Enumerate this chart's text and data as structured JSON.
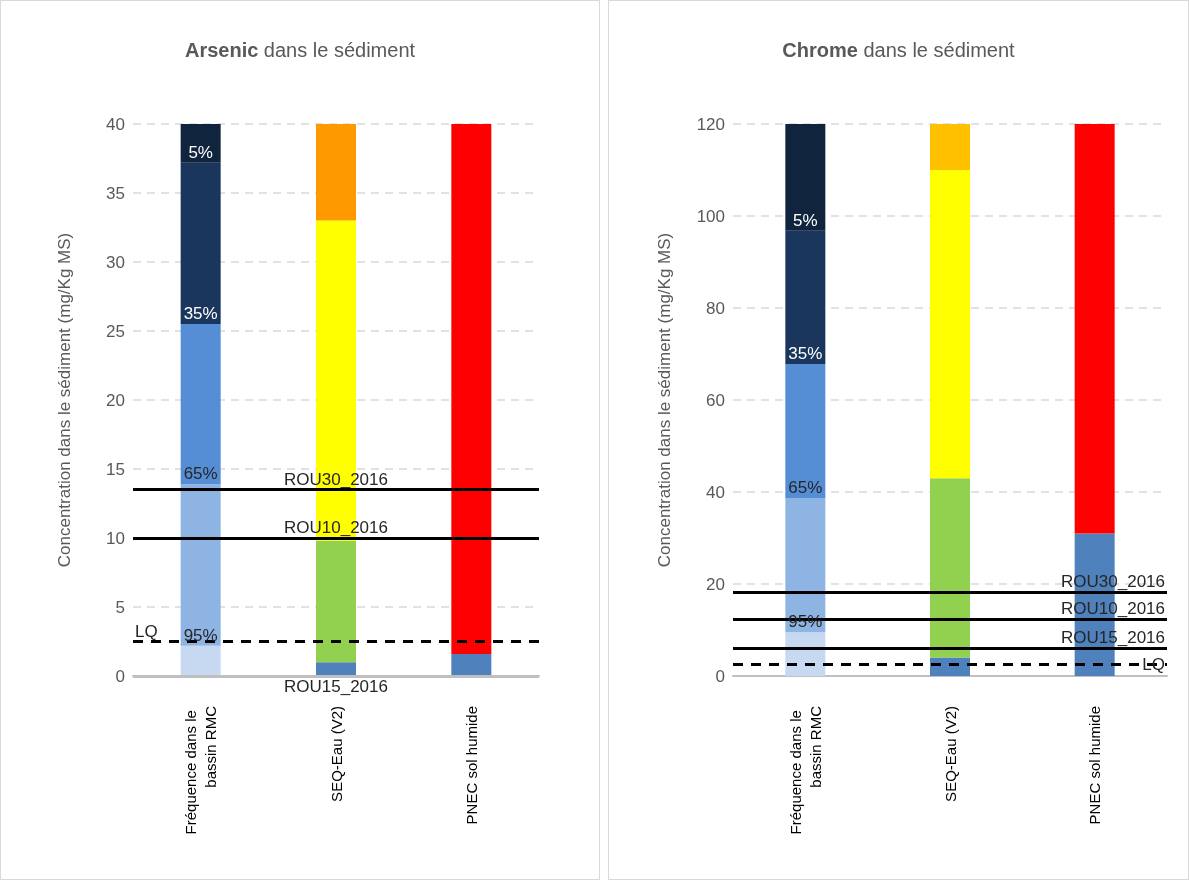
{
  "chart_data": [
    {
      "type": "bar",
      "title": "Arsenic dans le sédiment",
      "ylabel": "Concentration dans le sédiment (mg/Kg MS)",
      "categories": [
        "Fréquence dans le bassin RMC",
        "SEQ-Eau (V2)",
        "PNEC sol humide"
      ],
      "stacked": true,
      "grid": "y",
      "ylim": [
        0,
        40
      ],
      "yticks": [
        0,
        5,
        10,
        15,
        20,
        25,
        30,
        35,
        40
      ],
      "series": [
        {
          "values": [
            2.2,
            1,
            1.6
          ],
          "colors": [
            "#c6d9f1",
            "#4f81bd",
            "#4f81bd"
          ]
        },
        {
          "values": [
            11.7,
            8.8,
            38.4
          ],
          "colors": [
            "#8eb4e3",
            "#92d050",
            "#ff0000"
          ]
        },
        {
          "values": [
            11.6,
            23.2,
            null
          ],
          "colors": [
            "#558ed5",
            "#ffff00",
            null
          ]
        },
        {
          "values": [
            11.7,
            7,
            null
          ],
          "colors": [
            "#1a365d",
            "#ff9900",
            null
          ]
        },
        {
          "values": [
            2.8,
            null,
            null
          ],
          "colors": [
            "#10243e",
            null,
            null
          ]
        }
      ],
      "ref_lines": [
        {
          "axis": "y",
          "value": 13.5,
          "label": "ROU30_2016",
          "color": "#000000",
          "line_style": "solid"
        },
        {
          "axis": "y",
          "value": 10,
          "label": "ROU10_2016",
          "color": "#000000",
          "line_style": "solid"
        },
        {
          "axis": "y",
          "value": 0,
          "label": "ROU15_2016",
          "color": "#bfbfbf",
          "line_style": "solid"
        },
        {
          "axis": "y",
          "value": 2.5,
          "label": "LQ",
          "color": "#000000",
          "line_style": "dashed"
        }
      ],
      "annotations": [
        {
          "text": "5%",
          "x": "Fréquence dans le bassin RMC",
          "y": 37.2
        },
        {
          "text": "35%",
          "x": "Fréquence dans le bassin RMC",
          "y": 25.5
        },
        {
          "text": "65%",
          "x": "Fréquence dans le bassin RMC",
          "y": 13.9
        },
        {
          "text": "95%",
          "x": "Fréquence dans le bassin RMC",
          "y": 2.2
        }
      ]
    },
    {
      "type": "bar",
      "title": "Chrome dans le sédiment",
      "ylabel": "Concentration dans le sédiment (mg/Kg MS)",
      "categories": [
        "Fréquence dans le bassin RMC",
        "SEQ-Eau (V2)",
        "PNEC sol humide"
      ],
      "stacked": true,
      "grid": "y",
      "ylim": [
        0,
        120
      ],
      "yticks": [
        0,
        20,
        40,
        60,
        80,
        100,
        120
      ],
      "series": [
        {
          "values": [
            9.5,
            4,
            31
          ],
          "colors": [
            "#c6d9f1",
            "#4f81bd",
            "#4f81bd"
          ]
        },
        {
          "values": [
            29.2,
            39,
            89
          ],
          "colors": [
            "#8eb4e3",
            "#92d050",
            "#ff0000"
          ]
        },
        {
          "values": [
            29.1,
            67,
            null
          ],
          "colors": [
            "#558ed5",
            "#ffff00",
            null
          ]
        },
        {
          "values": [
            29,
            10,
            null
          ],
          "colors": [
            "#1a365d",
            "#ffc000",
            null
          ]
        },
        {
          "values": [
            23.2,
            null,
            null
          ],
          "colors": [
            "#10243e",
            null,
            null
          ]
        }
      ],
      "ref_lines": [
        {
          "axis": "y",
          "value": 18.3,
          "label": "ROU30_2016",
          "color": "#000000",
          "line_style": "solid"
        },
        {
          "axis": "y",
          "value": 12.4,
          "label": "ROU10_2016",
          "color": "#000000",
          "line_style": "solid"
        },
        {
          "axis": "y",
          "value": 6,
          "label": "ROU15_2016",
          "color": "#000000",
          "line_style": "solid"
        },
        {
          "axis": "y",
          "value": 2.5,
          "label": "LQ",
          "color": "#000000",
          "line_style": "dashed"
        }
      ],
      "annotations": [
        {
          "text": "5%",
          "x": "Fréquence dans le bassin RMC",
          "y": 96.7
        },
        {
          "text": "35%",
          "x": "Fréquence dans le bassin RMC",
          "y": 67.8
        },
        {
          "text": "65%",
          "x": "Fréquence dans le bassin RMC",
          "y": 38.8
        },
        {
          "text": "95%",
          "x": "Fréquence dans le bassin RMC",
          "y": 9.5
        }
      ]
    }
  ]
}
